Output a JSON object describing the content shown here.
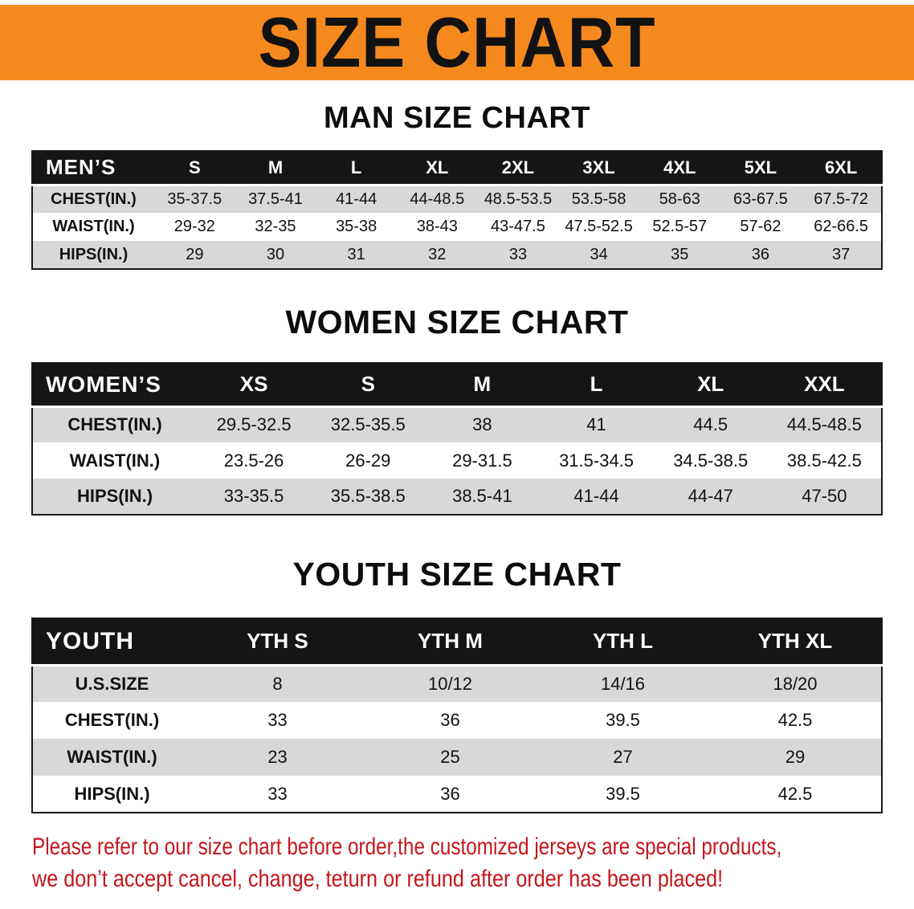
{
  "banner": {
    "title": "SIZE CHART"
  },
  "colors": {
    "banner_bg": "#f6891e",
    "banner_text": "#121212",
    "table_header_bg": "#151515",
    "table_header_text": "#ffffff",
    "row_stripe": "#d8d8d8",
    "footer_text": "#c3161c"
  },
  "chart_data": [
    {
      "type": "table",
      "title": "MAN SIZE CHART",
      "header": [
        "MEN’S",
        "S",
        "M",
        "L",
        "XL",
        "2XL",
        "3XL",
        "4XL",
        "5XL",
        "6XL"
      ],
      "rows": [
        [
          "CHEST(IN.)",
          "35-37.5",
          "37.5-41",
          "41-44",
          "44-48.5",
          "48.5-53.5",
          "53.5-58",
          "58-63",
          "63-67.5",
          "67.5-72"
        ],
        [
          "WAIST(IN.)",
          "29-32",
          "32-35",
          "35-38",
          "38-43",
          "43-47.5",
          "47.5-52.5",
          "52.5-57",
          "57-62",
          "62-66.5"
        ],
        [
          "HIPS(IN.)",
          "29",
          "30",
          "31",
          "32",
          "33",
          "34",
          "35",
          "36",
          "37"
        ]
      ]
    },
    {
      "type": "table",
      "title": "WOMEN SIZE CHART",
      "header": [
        "WOMEN’S",
        "XS",
        "S",
        "M",
        "L",
        "XL",
        "XXL"
      ],
      "rows": [
        [
          "CHEST(IN.)",
          "29.5-32.5",
          "32.5-35.5",
          "38",
          "41",
          "44.5",
          "44.5-48.5"
        ],
        [
          "WAIST(IN.)",
          "23.5-26",
          "26-29",
          "29-31.5",
          "31.5-34.5",
          "34.5-38.5",
          "38.5-42.5"
        ],
        [
          "HIPS(IN.)",
          "33-35.5",
          "35.5-38.5",
          "38.5-41",
          "41-44",
          "44-47",
          "47-50"
        ]
      ]
    },
    {
      "type": "table",
      "title": "YOUTH SIZE CHART",
      "header": [
        "YOUTH",
        "YTH S",
        "YTH M",
        "YTH L",
        "YTH XL"
      ],
      "rows": [
        [
          "U.S.SIZE",
          "8",
          "10/12",
          "14/16",
          "18/20"
        ],
        [
          "CHEST(IN.)",
          "33",
          "36",
          "39.5",
          "42.5"
        ],
        [
          "WAIST(IN.)",
          "23",
          "25",
          "27",
          "29"
        ],
        [
          "HIPS(IN.)",
          "33",
          "36",
          "39.5",
          "42.5"
        ]
      ]
    }
  ],
  "footer": {
    "lines": [
      "Please refer to our size chart before order,the customized jerseys are special products,",
      "we don’t accept cancel, change, teturn or refund after order has been placed!"
    ]
  }
}
